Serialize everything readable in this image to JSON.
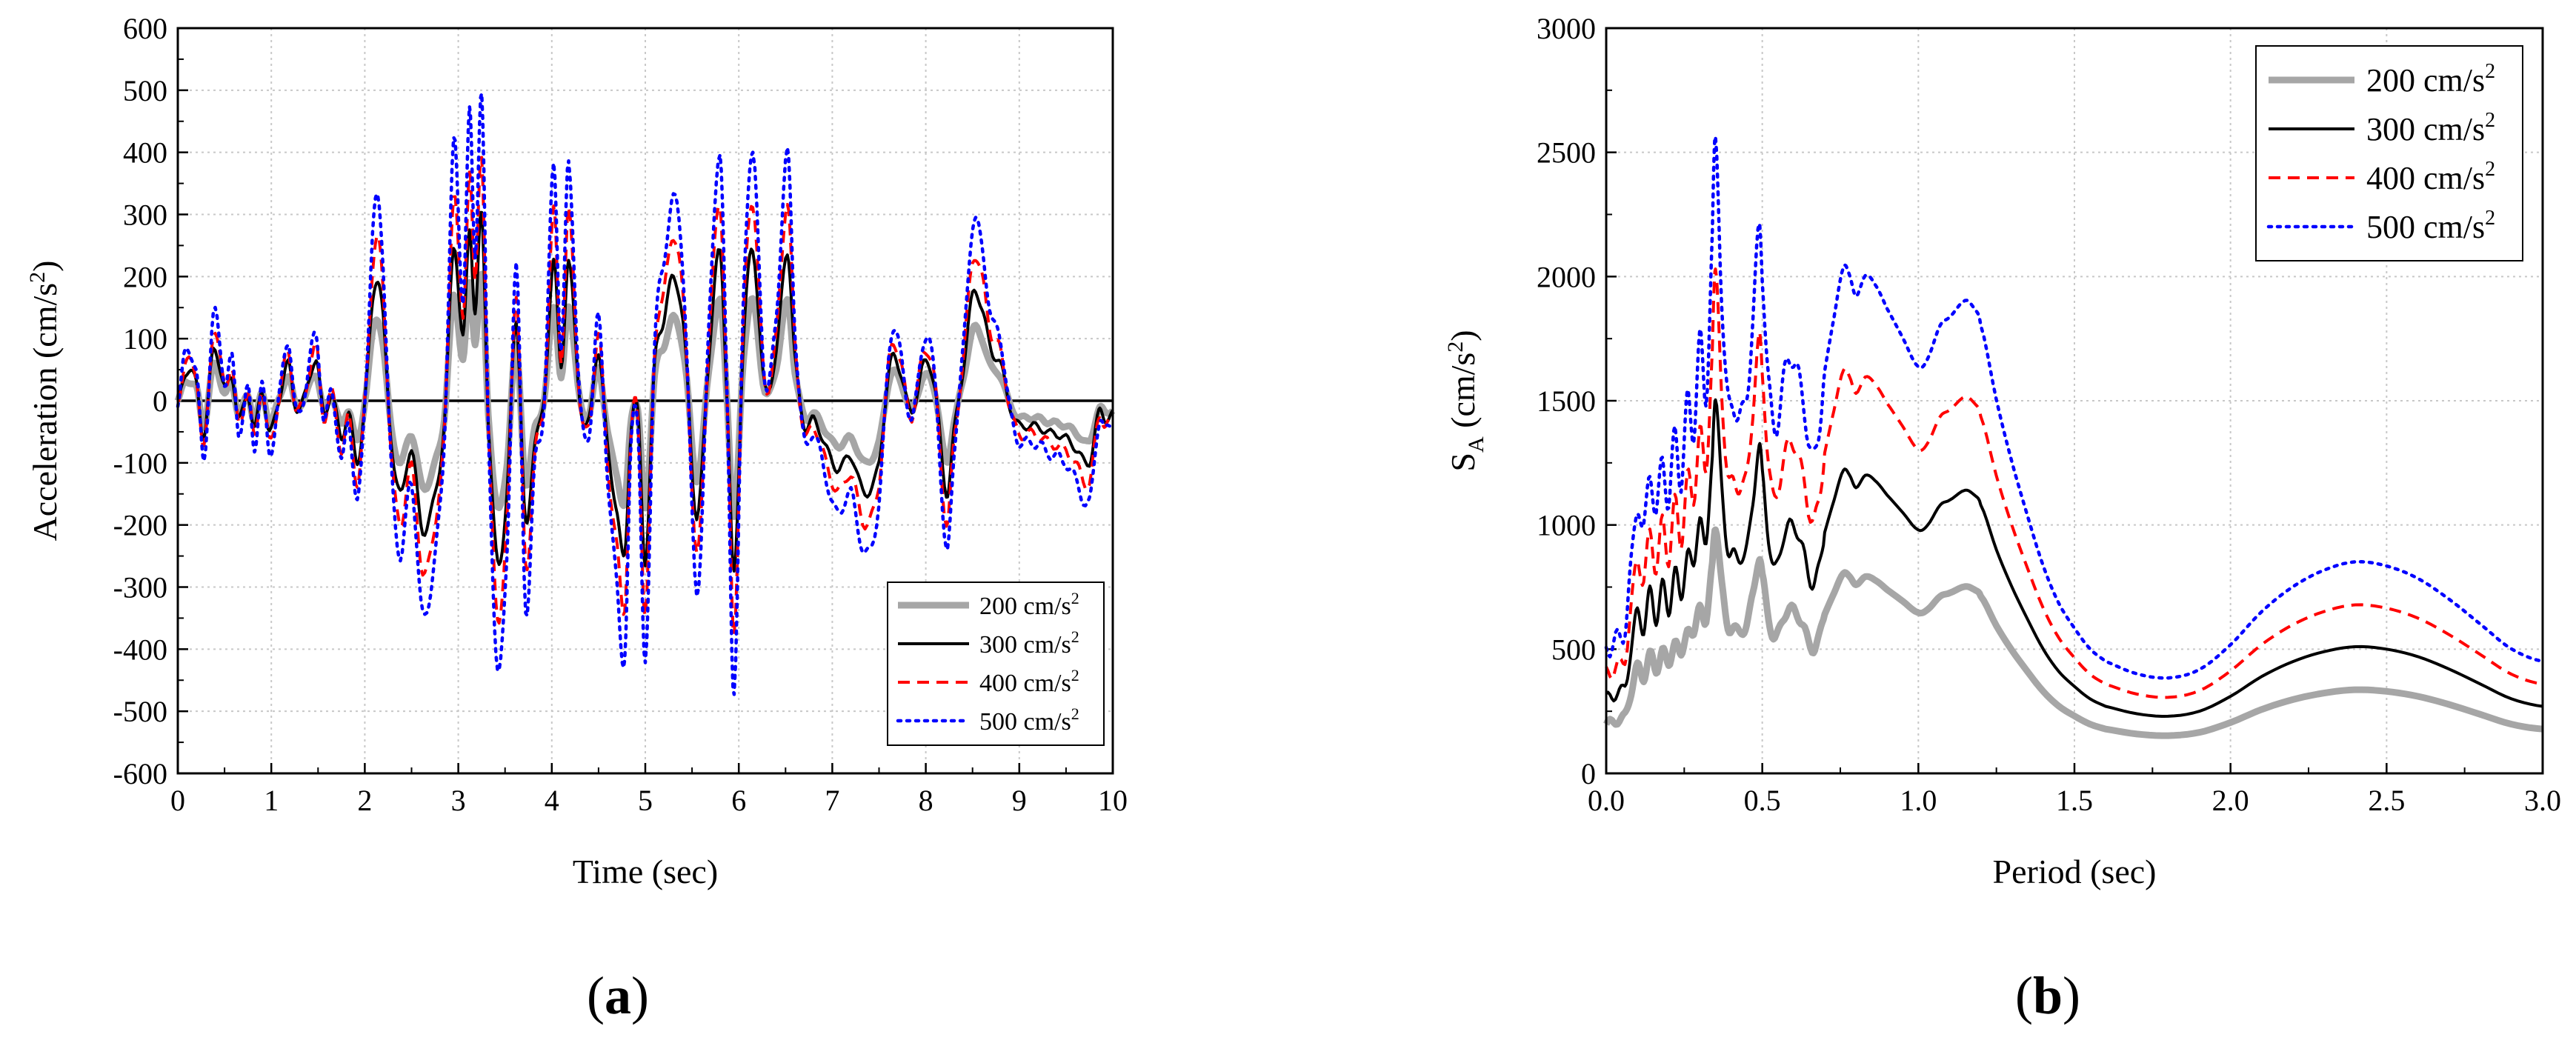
{
  "chart_data": [
    {
      "panel": "a",
      "panel_label_open": "(",
      "panel_label_letter": "a",
      "panel_label_close": ")",
      "type": "line",
      "title": "",
      "xlabel": "Time (sec)",
      "ylabel_prefix": "Acceleration (cm/s",
      "ylabel_sup": "2",
      "ylabel_suffix": ")",
      "xlim": [
        0,
        10
      ],
      "ylim": [
        -600,
        600
      ],
      "xticks": [
        0,
        1,
        2,
        3,
        4,
        5,
        6,
        7,
        8,
        9,
        10
      ],
      "yticks": [
        -600,
        -500,
        -400,
        -300,
        -200,
        -100,
        0,
        100,
        200,
        300,
        400,
        500,
        600
      ],
      "grid": true,
      "zero_line": true,
      "legend_position": "bottom-right",
      "unit_base": "cm/s",
      "unit_sup": "2",
      "base_shape_note": "scaled by series factor",
      "base_shape": {
        "t": [
          0,
          0.08,
          0.2,
          0.28,
          0.38,
          0.5,
          0.58,
          0.65,
          0.75,
          0.82,
          0.9,
          0.98,
          1.08,
          1.18,
          1.26,
          1.35,
          1.48,
          1.56,
          1.65,
          1.75,
          1.83,
          1.92,
          2.0,
          2.1,
          2.18,
          2.28,
          2.38,
          2.5,
          2.62,
          2.75,
          2.85,
          2.95,
          3.05,
          3.12,
          3.18,
          3.25,
          3.32,
          3.42,
          3.52,
          3.62,
          3.72,
          3.82,
          3.92,
          4.02,
          4.1,
          4.18,
          4.3,
          4.4,
          4.5,
          4.6,
          4.7,
          4.78,
          4.85,
          4.92,
          5.0,
          5.1,
          5.2,
          5.3,
          5.42,
          5.55,
          5.68,
          5.8,
          5.88,
          5.95,
          6.05,
          6.15,
          6.28,
          6.4,
          6.52,
          6.6,
          6.7,
          6.8,
          6.92,
          7.05,
          7.2,
          7.35,
          7.5,
          7.62,
          7.72,
          7.85,
          7.98,
          8.1,
          8.22,
          8.3,
          8.4,
          8.5,
          8.6,
          8.7,
          8.8,
          8.9,
          9.0,
          9.15,
          9.3,
          9.5,
          9.62,
          9.75,
          9.85,
          9.92,
          10.0
        ],
        "a": [
          0,
          45,
          30,
          -60,
          85,
          20,
          40,
          -30,
          10,
          -45,
          15,
          -50,
          0,
          60,
          -10,
          5,
          65,
          -20,
          10,
          -60,
          -20,
          -100,
          0,
          180,
          160,
          -60,
          -150,
          -80,
          -210,
          -150,
          -40,
          250,
          100,
          280,
          140,
          300,
          -30,
          -260,
          -150,
          130,
          -200,
          -60,
          0,
          230,
          50,
          230,
          0,
          -30,
          80,
          -80,
          -180,
          -250,
          -40,
          -20,
          -260,
          60,
          130,
          200,
          100,
          -190,
          70,
          240,
          -20,
          -280,
          100,
          240,
          20,
          80,
          240,
          70,
          -40,
          -30,
          -70,
          -110,
          -90,
          -150,
          -100,
          60,
          50,
          -20,
          60,
          20,
          -150,
          -50,
          50,
          170,
          150,
          80,
          60,
          -10,
          -40,
          -40,
          -50,
          -60,
          -80,
          -100,
          -20,
          -30,
          -20
        ]
      },
      "series": [
        {
          "name_value": "200",
          "scale": 0.67,
          "color": "#a6a6a6",
          "style": "solid-thick"
        },
        {
          "name_value": "300",
          "scale": 1.0,
          "color": "#000000",
          "style": "solid"
        },
        {
          "name_value": "400",
          "scale": 1.33,
          "color": "#ff0000",
          "style": "dashed"
        },
        {
          "name_value": "500",
          "scale": 1.66,
          "color": "#0000ff",
          "style": "dotted"
        }
      ]
    },
    {
      "panel": "b",
      "panel_label_open": "(",
      "panel_label_letter": "b",
      "panel_label_close": ")",
      "type": "line",
      "title": "",
      "xlabel": "Period (sec)",
      "ylabel_s": "S",
      "ylabel_sub": "A",
      "ylabel_rest": " (cm/s",
      "ylabel_sup": "2",
      "ylabel_suffix": ")",
      "xlim": [
        0,
        3
      ],
      "ylim": [
        0,
        3000
      ],
      "xticks": [
        "0.0",
        "0.5",
        "1.0",
        "1.5",
        "2.0",
        "2.5",
        "3.0"
      ],
      "yticks": [
        0,
        500,
        1000,
        1500,
        2000,
        2500,
        3000
      ],
      "grid": true,
      "legend_position": "top-right",
      "unit_base": "cm/s",
      "unit_sup": "2",
      "base_shape_note": "values for the 300 cm/s2 series; others scaled",
      "base_shape": {
        "T": [
          0,
          0.03,
          0.06,
          0.08,
          0.1,
          0.12,
          0.14,
          0.16,
          0.18,
          0.2,
          0.22,
          0.24,
          0.26,
          0.28,
          0.3,
          0.32,
          0.34,
          0.35,
          0.37,
          0.39,
          0.41,
          0.43,
          0.45,
          0.47,
          0.49,
          0.5,
          0.52,
          0.54,
          0.57,
          0.6,
          0.63,
          0.66,
          0.68,
          0.7,
          0.73,
          0.76,
          0.78,
          0.8,
          0.83,
          0.86,
          0.9,
          0.95,
          1.0,
          1.03,
          1.07,
          1.1,
          1.15,
          1.18,
          1.2,
          1.25,
          1.3,
          1.35,
          1.4,
          1.45,
          1.5,
          1.55,
          1.6,
          1.7,
          1.8,
          1.9,
          2.0,
          2.1,
          2.2,
          2.3,
          2.4,
          2.5,
          2.6,
          2.7,
          2.8,
          2.9,
          3.0
        ],
        "SA": [
          300,
          320,
          350,
          500,
          650,
          580,
          730,
          620,
          760,
          650,
          820,
          700,
          900,
          820,
          1050,
          900,
          1300,
          1510,
          1150,
          900,
          880,
          870,
          900,
          1100,
          1310,
          1200,
          950,
          820,
          960,
          1000,
          900,
          760,
          820,
          970,
          1100,
          1220,
          1200,
          1150,
          1200,
          1180,
          1120,
          1050,
          980,
          1000,
          1080,
          1100,
          1140,
          1120,
          1080,
          900,
          750,
          620,
          500,
          410,
          350,
          300,
          270,
          240,
          230,
          250,
          310,
          390,
          450,
          490,
          510,
          500,
          470,
          420,
          360,
          300,
          270
        ]
      },
      "series": [
        {
          "name_value": "200",
          "scale": 0.66,
          "color": "#a6a6a6",
          "style": "solid-thick"
        },
        {
          "name_value": "300",
          "scale": 1.0,
          "color": "#000000",
          "style": "solid"
        },
        {
          "name_value": "400",
          "scale": 1.33,
          "color": "#ff0000",
          "style": "dashed"
        },
        {
          "name_value": "500",
          "scale": 1.67,
          "color": "#0000ff",
          "style": "dotted"
        }
      ]
    }
  ]
}
